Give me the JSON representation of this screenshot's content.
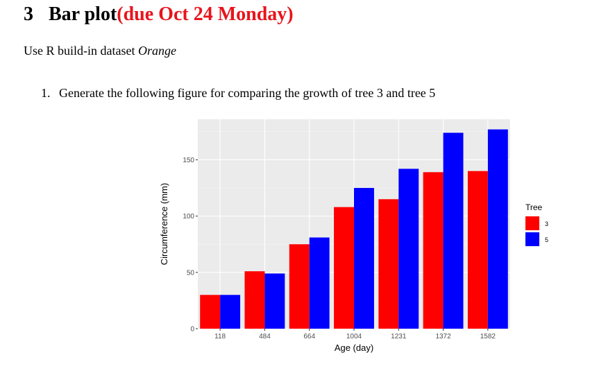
{
  "section": {
    "number": "3",
    "title": "Bar plot",
    "due": "(due Oct 24 Monday)"
  },
  "intro": {
    "text": "Use R build-in dataset ",
    "dataset": "Orange"
  },
  "task": {
    "number": "1.",
    "text": "Generate the following figure for comparing the growth of tree 3 and tree 5"
  },
  "chart_data": {
    "type": "bar",
    "categories": [
      "118",
      "484",
      "664",
      "1004",
      "1231",
      "1372",
      "1582"
    ],
    "series": [
      {
        "name": "3",
        "values": [
          30,
          51,
          75,
          108,
          115,
          139,
          140
        ]
      },
      {
        "name": "5",
        "values": [
          30,
          49,
          81,
          125,
          142,
          174,
          177
        ]
      }
    ],
    "title": "",
    "xlabel": "Age (day)",
    "ylabel": "Circumference (mm)",
    "ylim": [
      0,
      186
    ],
    "yticks": [
      0,
      50,
      100,
      150
    ],
    "grid": true,
    "legend": {
      "title": "Tree",
      "placement": "right"
    },
    "colors": {
      "3": "#ff0000",
      "5": "#0000ff",
      "panel": "#ebebeb",
      "gridline": "#ffffff"
    }
  }
}
